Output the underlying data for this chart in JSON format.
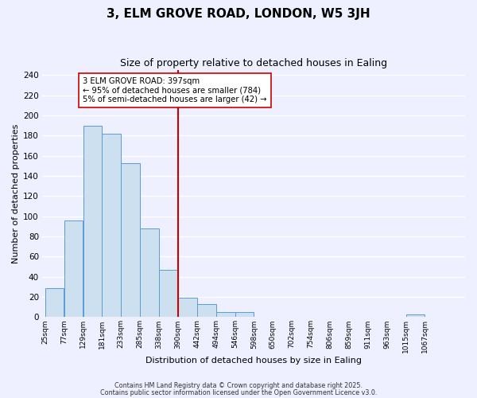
{
  "title": "3, ELM GROVE ROAD, LONDON, W5 3JH",
  "subtitle": "Size of property relative to detached houses in Ealing",
  "xlabel": "Distribution of detached houses by size in Ealing",
  "ylabel": "Number of detached properties",
  "bar_left_edges": [
    25,
    77,
    129,
    181,
    233,
    285,
    338,
    390,
    442,
    494,
    546,
    598,
    650,
    702,
    754,
    806,
    859,
    911,
    963,
    1015
  ],
  "bar_heights": [
    29,
    96,
    190,
    182,
    153,
    88,
    47,
    19,
    13,
    5,
    5,
    0,
    0,
    0,
    0,
    0,
    0,
    0,
    0,
    3
  ],
  "bin_width": 52,
  "tick_labels": [
    "25sqm",
    "77sqm",
    "129sqm",
    "181sqm",
    "233sqm",
    "285sqm",
    "338sqm",
    "390sqm",
    "442sqm",
    "494sqm",
    "546sqm",
    "598sqm",
    "650sqm",
    "702sqm",
    "754sqm",
    "806sqm",
    "859sqm",
    "911sqm",
    "963sqm",
    "1015sqm",
    "1067sqm"
  ],
  "bar_color": "#cce0f0",
  "bar_edge_color": "#5b9bd5",
  "vline_x": 390,
  "vline_color": "#cc0000",
  "ylim": [
    0,
    245
  ],
  "yticks": [
    0,
    20,
    40,
    60,
    80,
    100,
    120,
    140,
    160,
    180,
    200,
    220,
    240
  ],
  "annotation_line1": "3 ELM GROVE ROAD: 397sqm",
  "annotation_line2": "← 95% of detached houses are smaller (784)",
  "annotation_line3": "5% of semi-detached houses are larger (42) →",
  "footer1": "Contains HM Land Registry data © Crown copyright and database right 2025.",
  "footer2": "Contains public sector information licensed under the Open Government Licence v3.0.",
  "background_color": "#eef0ff",
  "grid_color": "#ffffff"
}
